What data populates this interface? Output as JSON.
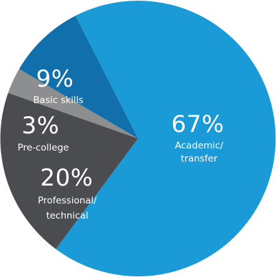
{
  "chart_data": {
    "type": "pie",
    "start_angle_deg": -117,
    "direction": "clockwise",
    "slices": [
      {
        "label_lines": [
          "Academic/",
          "transfer"
        ],
        "value": 67,
        "value_text": "67%",
        "color": "#1a9ad6"
      },
      {
        "label_lines": [
          "Professional/",
          "technical"
        ],
        "value": 20,
        "value_text": "20%",
        "color": "#4a4c4f"
      },
      {
        "label_lines": [
          "Pre-college"
        ],
        "value": 3,
        "value_text": "3%",
        "color": "#8c8e90"
      },
      {
        "label_lines": [
          "Basic skills"
        ],
        "value": 9,
        "value_text": "9%",
        "color": "#1170ab"
      }
    ],
    "legend": "none"
  }
}
